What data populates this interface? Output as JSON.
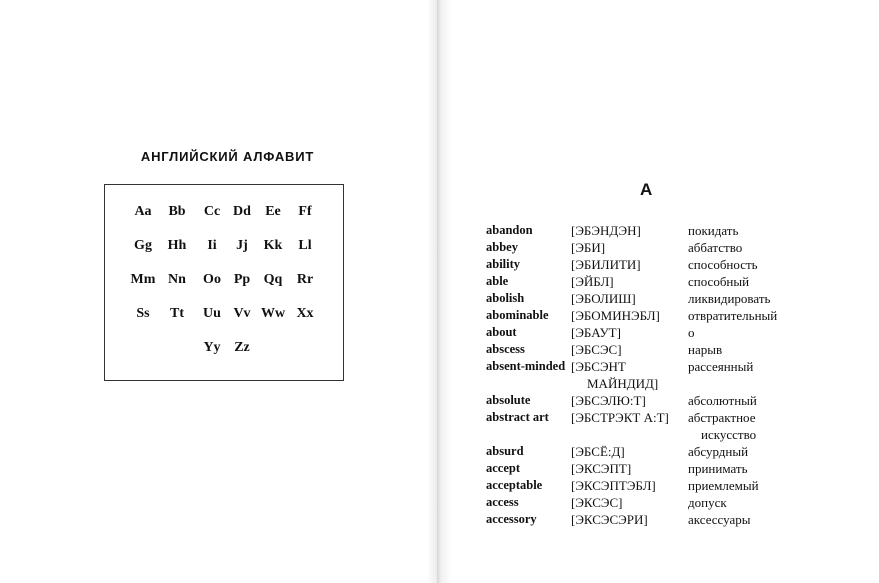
{
  "left_page": {
    "title": "АНГЛИЙСКИЙ АЛФАВИТ",
    "alphabet": {
      "rows": [
        [
          "Aa",
          "Bb",
          "Cc",
          "Dd",
          "Ee",
          "Ff"
        ],
        [
          "Gg",
          "Hh",
          "Ii",
          "Jj",
          "Kk",
          "Ll"
        ],
        [
          "Mm",
          "Nn",
          "Oo",
          "Pp",
          "Qq",
          "Rr"
        ],
        [
          "Ss",
          "Tt",
          "Uu",
          "Vv",
          "Ww",
          "Xx"
        ],
        [
          "Yy",
          "Zz"
        ]
      ]
    }
  },
  "right_page": {
    "heading": "A",
    "entries": [
      {
        "word": "abandon",
        "transcription": [
          "[ЭБЭНДЭН]"
        ],
        "translation": [
          "покидать"
        ]
      },
      {
        "word": "abbey",
        "transcription": [
          "[ЭБИ]"
        ],
        "translation": [
          "аббатство"
        ]
      },
      {
        "word": "ability",
        "transcription": [
          "[ЭБИЛИТИ]"
        ],
        "translation": [
          "способность"
        ]
      },
      {
        "word": "able",
        "transcription": [
          "[ЭЙБЛ]"
        ],
        "translation": [
          "способный"
        ]
      },
      {
        "word": "abolish",
        "transcription": [
          "[ЭБОЛИШ]"
        ],
        "translation": [
          "ликвидировать"
        ]
      },
      {
        "word": "abominable",
        "transcription": [
          "[ЭБОМИНЭБЛ]"
        ],
        "translation": [
          "отвратительный"
        ]
      },
      {
        "word": "about",
        "transcription": [
          "[ЭБАУТ]"
        ],
        "translation": [
          "о"
        ]
      },
      {
        "word": "abscess",
        "transcription": [
          "[ЭБСЭС]"
        ],
        "translation": [
          "нарыв"
        ]
      },
      {
        "word": "absent-minded",
        "transcription": [
          "[ЭБСЭНТ",
          "МАЙНДИД]"
        ],
        "translation": [
          "рассеянный"
        ]
      },
      {
        "word": "absolute",
        "transcription": [
          "[ЭБСЭЛЮ:Т]"
        ],
        "translation": [
          "абсолютный"
        ]
      },
      {
        "word": "abstract art",
        "transcription": [
          "[ЭБСТРЭКТ А:Т]"
        ],
        "translation": [
          "абстрактное",
          "искусство"
        ]
      },
      {
        "word": "absurd",
        "transcription": [
          "[ЭБСЁ:Д]"
        ],
        "translation": [
          "абсурдный"
        ]
      },
      {
        "word": "accept",
        "transcription": [
          "[ЭКСЭПТ]"
        ],
        "translation": [
          "принимать"
        ]
      },
      {
        "word": "acceptable",
        "transcription": [
          "[ЭКСЭПТЭБЛ]"
        ],
        "translation": [
          "приемлемый"
        ]
      },
      {
        "word": "access",
        "transcription": [
          "[ЭКСЭС]"
        ],
        "translation": [
          "допуск"
        ]
      },
      {
        "word": "accessory",
        "transcription": [
          "[ЭКСЭСЭРИ]"
        ],
        "translation": [
          "аксессуары"
        ]
      }
    ]
  }
}
